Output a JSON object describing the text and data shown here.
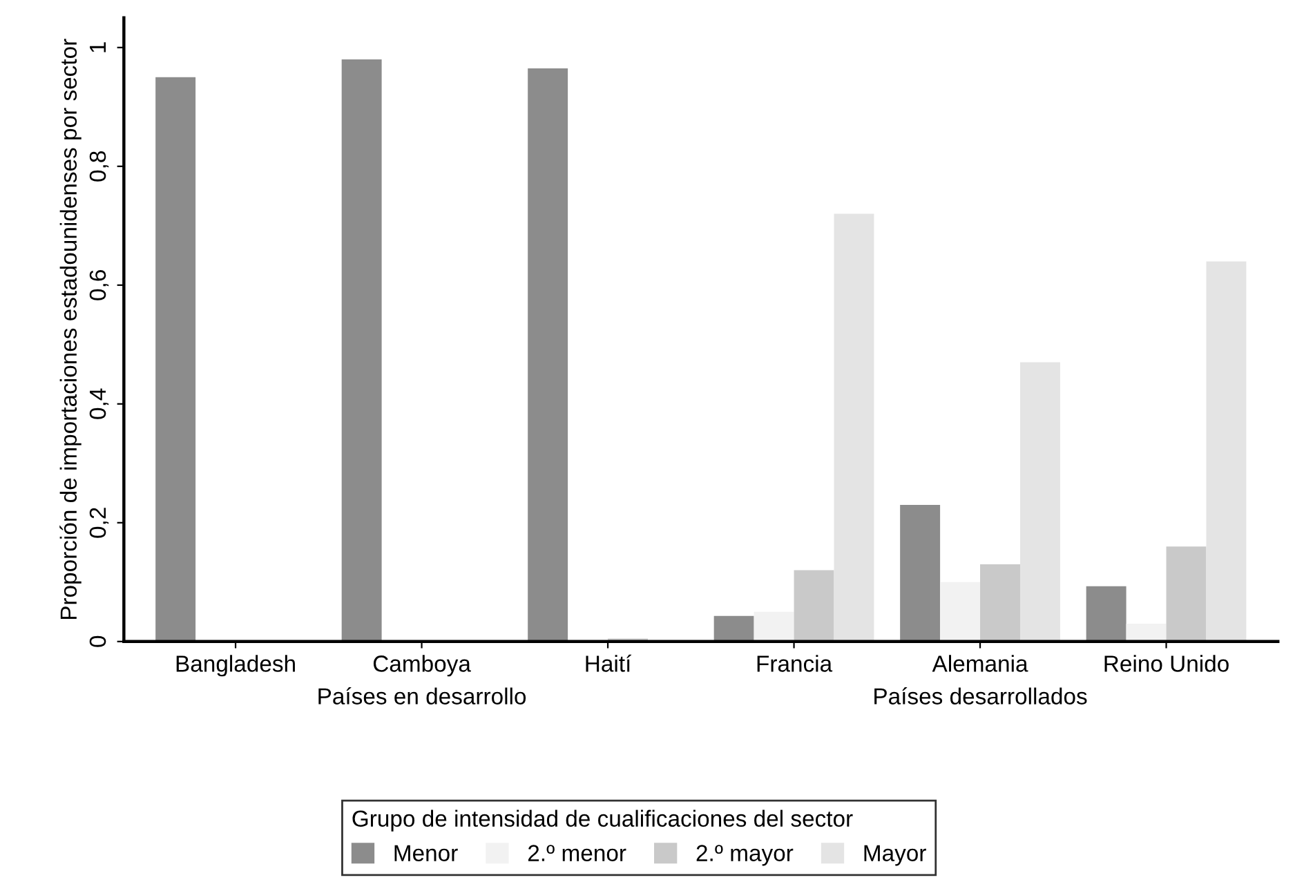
{
  "chart_data": {
    "type": "bar",
    "ylabel": "Proporción de importaciones estadounidenses por sector",
    "legend_title": "Grupo de intensidad de cualificaciones del sector",
    "categories": [
      "Bangladesh",
      "Camboya",
      "Haití",
      "Francia",
      "Alemania",
      "Reino Unido"
    ],
    "series": [
      {
        "name": "Menor",
        "color": "#8c8c8c",
        "values": [
          0.95,
          0.98,
          0.965,
          0.043,
          0.23,
          0.093
        ]
      },
      {
        "name": "2.º menor",
        "color": "#f2f2f2",
        "values": [
          0,
          0,
          0,
          0.05,
          0.1,
          0.03
        ]
      },
      {
        "name": "2.º mayor",
        "color": "#c9c9c9",
        "values": [
          0,
          0,
          0.005,
          0.12,
          0.13,
          0.16
        ]
      },
      {
        "name": "Mayor",
        "color": "#e4e4e4",
        "values": [
          0,
          0,
          0,
          0.72,
          0.47,
          0.64
        ]
      }
    ],
    "ylim": [
      0,
      1.05
    ],
    "yticks": [
      0,
      {
        "value": 0.2,
        "label": "0,2"
      },
      {
        "value": 0.4,
        "label": "0,4"
      },
      {
        "value": 0.6,
        "label": "0,6"
      },
      {
        "value": 0.8,
        "label": "0,8"
      },
      1
    ],
    "annotations": [
      "Países en desarrollo",
      "Países desarrollados"
    ],
    "legend": "bottom",
    "grid": false
  }
}
